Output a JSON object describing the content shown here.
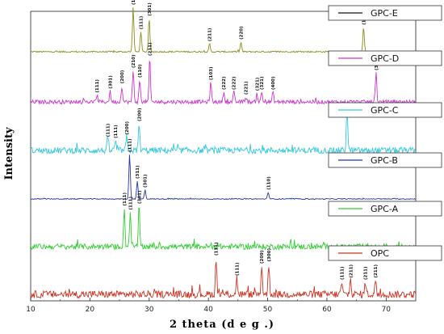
{
  "chart_data": {
    "type": "line",
    "xlabel": "2 theta (d e g .)",
    "ylabel": "Intensity",
    "xlim": [
      10,
      75
    ],
    "xticks": [
      "10",
      "20",
      "30",
      "40",
      "50",
      "60",
      "70"
    ],
    "xtick_values": [
      10,
      20,
      30,
      40,
      50,
      60,
      70
    ],
    "grid": false,
    "legend_placement": "right of each pattern",
    "series": [
      {
        "name": "GPC-E",
        "color": "#8c8c1a",
        "legend_line_color": "#111111",
        "noise": 0.015,
        "peaks": [
          {
            "x": 27.3,
            "h": 1.0,
            "label": "(111)"
          },
          {
            "x": 28.6,
            "h": 0.45,
            "label": "(111)"
          },
          {
            "x": 30.0,
            "h": 0.75,
            "label": "(301)"
          },
          {
            "x": 40.2,
            "h": 0.18,
            "label": "(211)"
          },
          {
            "x": 45.5,
            "h": 0.22,
            "label": "(220)"
          },
          {
            "x": 66.2,
            "h": 0.55,
            "label": "(111)"
          }
        ]
      },
      {
        "name": "GPC-D",
        "color": "#cc33cc",
        "legend_line_color": "#cc33cc",
        "noise": 0.04,
        "peaks": [
          {
            "x": 21.2,
            "h": 0.14,
            "label": "(111)"
          },
          {
            "x": 23.4,
            "h": 0.22,
            "label": "(301)"
          },
          {
            "x": 25.4,
            "h": 0.33,
            "label": "(200)"
          },
          {
            "x": 27.3,
            "h": 0.65,
            "label": "(210)"
          },
          {
            "x": 28.4,
            "h": 0.45,
            "label": "(110)"
          },
          {
            "x": 30.1,
            "h": 0.9,
            "label": "(211)"
          },
          {
            "x": 40.4,
            "h": 0.4,
            "label": "(103)"
          },
          {
            "x": 42.6,
            "h": 0.2,
            "label": "(222)"
          },
          {
            "x": 44.3,
            "h": 0.2,
            "label": "(222)"
          },
          {
            "x": 46.3,
            "h": 0.1,
            "label": "(221)"
          },
          {
            "x": 48.2,
            "h": 0.18,
            "label": "(321)"
          },
          {
            "x": 49.0,
            "h": 0.2,
            "label": "(321)"
          },
          {
            "x": 50.9,
            "h": 0.2,
            "label": "(400)"
          },
          {
            "x": 68.3,
            "h": 0.6,
            "label": "(311)"
          }
        ]
      },
      {
        "name": "GPC-C",
        "color": "#33c8dd",
        "legend_line_color": "#33c8dd",
        "noise": 0.07,
        "peaks": [
          {
            "x": 23.0,
            "h": 0.25,
            "label": "(111)"
          },
          {
            "x": 24.3,
            "h": 0.22,
            "label": "(111)"
          },
          {
            "x": 26.2,
            "h": 0.3,
            "label": "(200)"
          },
          {
            "x": 28.3,
            "h": 0.6,
            "label": "(200)"
          },
          {
            "x": 63.4,
            "h": 1.0,
            "label": ""
          }
        ]
      },
      {
        "name": "GPC-B",
        "color": "#2233aa",
        "legend_line_color": "#2233aa",
        "noise": 0.01,
        "peaks": [
          {
            "x": 26.7,
            "h": 1.0,
            "label": "(111)"
          },
          {
            "x": 28.0,
            "h": 0.4,
            "label": "(311)"
          },
          {
            "x": 29.3,
            "h": 0.2,
            "label": "(301)"
          },
          {
            "x": 50.1,
            "h": 0.15,
            "label": "(110)"
          }
        ]
      },
      {
        "name": "GPC-A",
        "color": "#33cc33",
        "legend_line_color": "#33cc33",
        "noise": 0.07,
        "peaks": [
          {
            "x": 25.8,
            "h": 0.95,
            "label": "(111)"
          },
          {
            "x": 26.8,
            "h": 0.85,
            "label": "(111)"
          },
          {
            "x": 28.3,
            "h": 1.0,
            "label": "(301)"
          }
        ]
      },
      {
        "name": "OPC",
        "color": "#cc3322",
        "legend_line_color": "#cc3322",
        "noise": 0.09,
        "peaks": [
          {
            "x": 41.3,
            "h": 0.9,
            "label": "(111)"
          },
          {
            "x": 44.8,
            "h": 0.4,
            "label": "(111)"
          },
          {
            "x": 49.0,
            "h": 0.7,
            "label": "(209)"
          },
          {
            "x": 50.2,
            "h": 0.75,
            "label": "(300)"
          },
          {
            "x": 62.5,
            "h": 0.3,
            "label": "(111)"
          },
          {
            "x": 64.0,
            "h": 0.35,
            "label": "(211)"
          },
          {
            "x": 66.5,
            "h": 0.3,
            "label": "(211)"
          },
          {
            "x": 68.2,
            "h": 0.35,
            "label": "(211)"
          }
        ]
      }
    ]
  }
}
